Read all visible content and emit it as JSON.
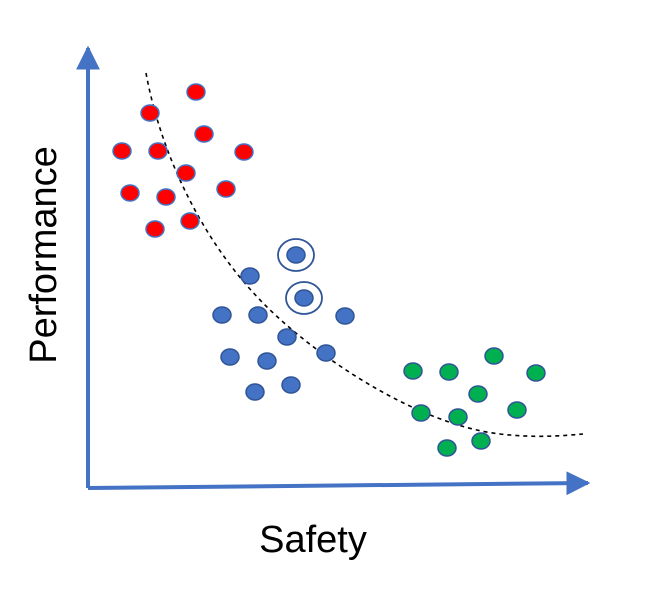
{
  "labels": {
    "x_axis": "Safety",
    "y_axis": "Performance"
  },
  "colors": {
    "axis": "#4472C4",
    "red_fill": "#FF0000",
    "red_stroke": "#4472C4",
    "blue_fill": "#4472C4",
    "blue_stroke": "#2F5597",
    "green_fill": "#00B050",
    "green_stroke": "#2F5597",
    "curve": "#000000",
    "highlight_ring": "#2F5597"
  },
  "clusters": [
    {
      "name": "red-cluster",
      "color_key": "red",
      "count": 12
    },
    {
      "name": "blue-cluster",
      "color_key": "blue",
      "count": 12,
      "highlighted_count": 2
    },
    {
      "name": "green-cluster",
      "color_key": "green",
      "count": 10
    }
  ],
  "curve_style": "dashed"
}
